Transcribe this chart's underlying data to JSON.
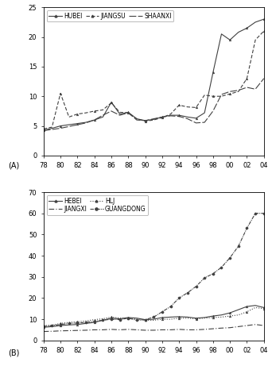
{
  "years_a": [
    1978,
    1979,
    1980,
    1981,
    1982,
    1983,
    1984,
    1985,
    1986,
    1987,
    1988,
    1989,
    1990,
    1991,
    1992,
    1993,
    1994,
    1995,
    1996,
    1997,
    1998,
    1999,
    2000,
    2001,
    2002,
    2003,
    2004
  ],
  "panel_a": {
    "hubei": [
      4.3,
      4.6,
      5.0,
      5.2,
      5.4,
      5.6,
      6.0,
      6.5,
      9.0,
      7.0,
      7.3,
      6.2,
      5.9,
      6.1,
      6.5,
      6.8,
      6.8,
      6.5,
      6.3,
      7.2,
      14.0,
      20.5,
      19.5,
      20.8,
      21.5,
      22.5,
      23.0
    ],
    "jiangsu": [
      4.5,
      4.8,
      10.5,
      6.5,
      7.0,
      7.2,
      7.5,
      7.7,
      8.9,
      7.3,
      7.2,
      6.2,
      5.8,
      6.0,
      6.4,
      7.0,
      8.5,
      8.2,
      8.1,
      10.2,
      10.0,
      10.0,
      10.4,
      10.8,
      13.0,
      19.5,
      21.0
    ],
    "shaanxi": [
      4.2,
      4.4,
      4.6,
      4.9,
      5.2,
      5.5,
      6.0,
      6.8,
      7.5,
      6.8,
      7.2,
      6.0,
      5.9,
      6.2,
      6.5,
      6.7,
      6.6,
      6.2,
      5.5,
      5.6,
      7.5,
      10.3,
      10.8,
      11.0,
      11.5,
      11.2,
      13.0
    ]
  },
  "panel_b": {
    "hebei": [
      6.2,
      6.5,
      7.0,
      7.3,
      7.5,
      8.0,
      8.5,
      9.5,
      10.5,
      10.2,
      10.8,
      10.5,
      9.8,
      10.0,
      10.8,
      11.0,
      11.2,
      11.0,
      10.5,
      10.8,
      11.5,
      12.0,
      13.0,
      14.5,
      16.0,
      16.5,
      15.5
    ],
    "jiangxi": [
      4.2,
      4.3,
      4.5,
      4.6,
      4.7,
      4.8,
      5.0,
      5.0,
      5.2,
      5.0,
      5.2,
      5.0,
      4.8,
      4.8,
      5.0,
      5.0,
      5.2,
      5.0,
      5.0,
      5.2,
      5.5,
      5.8,
      6.0,
      6.5,
      7.0,
      7.5,
      7.0
    ],
    "hlj": [
      7.0,
      7.2,
      8.0,
      8.5,
      8.8,
      9.2,
      9.8,
      10.2,
      11.0,
      10.5,
      10.5,
      10.0,
      9.5,
      9.5,
      10.0,
      10.0,
      10.5,
      10.5,
      10.2,
      10.5,
      10.8,
      11.0,
      11.5,
      12.0,
      13.5,
      15.5,
      15.0
    ],
    "guangdong": [
      6.5,
      7.0,
      7.5,
      8.0,
      8.2,
      8.5,
      9.0,
      9.5,
      10.0,
      9.8,
      10.5,
      9.5,
      9.8,
      11.0,
      13.5,
      16.0,
      20.0,
      22.5,
      25.5,
      29.5,
      31.5,
      34.5,
      39.0,
      44.5,
      53.0,
      60.0,
      60.0
    ]
  },
  "xtick_labels": [
    "78",
    "80",
    "82",
    "84",
    "86",
    "88",
    "90",
    "92",
    "94",
    "96",
    "98",
    "00",
    "02",
    "04"
  ],
  "line_color": "#404040"
}
